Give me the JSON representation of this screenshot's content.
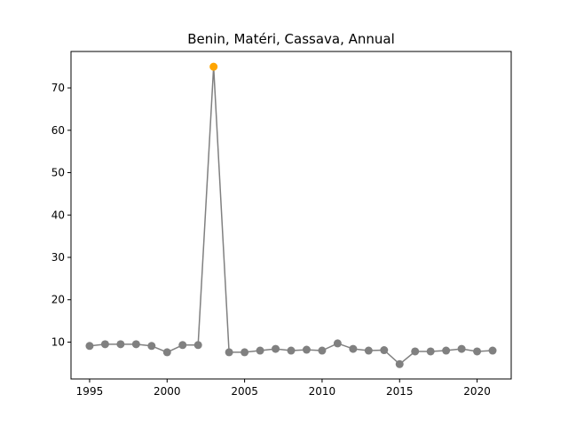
{
  "chart_data": {
    "type": "line",
    "title": "Benin, Matéri, Cassava, Annual",
    "xlabel": "",
    "ylabel": "",
    "xlim": [
      1993.8,
      2022.2
    ],
    "ylim": [
      1.3,
      78.6
    ],
    "xticks": [
      1995,
      2000,
      2005,
      2010,
      2015,
      2020
    ],
    "yticks": [
      10,
      20,
      30,
      40,
      50,
      60,
      70
    ],
    "grid": false,
    "legend": "none",
    "series": [
      {
        "color": "#808080",
        "highlight_color": "#FFA500",
        "highlight_index": 8,
        "points": [
          {
            "x": 1995,
            "y": 9.1
          },
          {
            "x": 1996,
            "y": 9.5
          },
          {
            "x": 1997,
            "y": 9.5
          },
          {
            "x": 1998,
            "y": 9.5
          },
          {
            "x": 1999,
            "y": 9.1
          },
          {
            "x": 2000,
            "y": 7.6
          },
          {
            "x": 2001,
            "y": 9.3
          },
          {
            "x": 2002,
            "y": 9.3
          },
          {
            "x": 2003,
            "y": 75.0
          },
          {
            "x": 2004,
            "y": 7.6
          },
          {
            "x": 2005,
            "y": 7.6
          },
          {
            "x": 2006,
            "y": 8.0
          },
          {
            "x": 2007,
            "y": 8.4
          },
          {
            "x": 2008,
            "y": 8.0
          },
          {
            "x": 2009,
            "y": 8.2
          },
          {
            "x": 2010,
            "y": 8.0
          },
          {
            "x": 2011,
            "y": 9.7
          },
          {
            "x": 2012,
            "y": 8.4
          },
          {
            "x": 2013,
            "y": 8.0
          },
          {
            "x": 2014,
            "y": 8.1
          },
          {
            "x": 2015,
            "y": 4.8
          },
          {
            "x": 2016,
            "y": 7.8
          },
          {
            "x": 2017,
            "y": 7.8
          },
          {
            "x": 2018,
            "y": 8.0
          },
          {
            "x": 2019,
            "y": 8.4
          },
          {
            "x": 2020,
            "y": 7.8
          },
          {
            "x": 2021,
            "y": 8.0
          }
        ]
      }
    ]
  }
}
